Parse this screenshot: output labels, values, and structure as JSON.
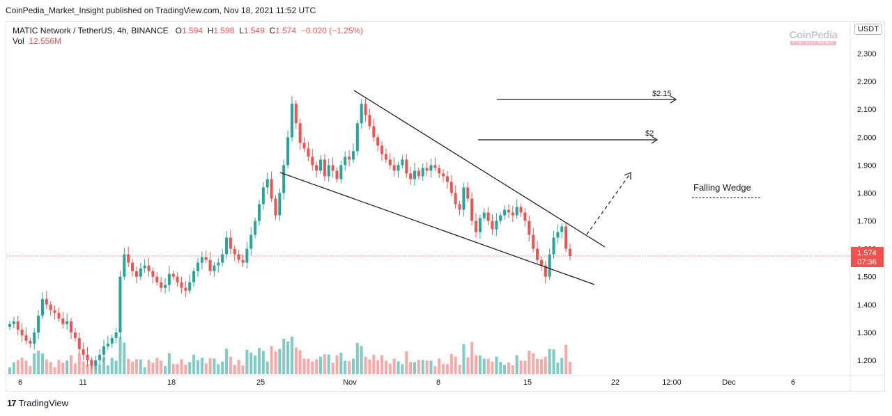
{
  "header": {
    "published": "CoinPedia_Market_Insight published on TradingView.com, Nov 18, 2021 11:52 UTC"
  },
  "legend": {
    "symbol": "MATIC Network / TetherUS, 4h, BINANCE",
    "o_label": "O",
    "o": "1.594",
    "h_label": "H",
    "h": "1.598",
    "l_label": "L",
    "l": "1.549",
    "c_label": "C",
    "c": "1.574",
    "change": "−0.020 (−1.25%)",
    "vol_label": "Vol",
    "vol": "12.556M"
  },
  "watermark": {
    "line1": "CoinPedia",
    "line2": "FINTECH NEWS"
  },
  "currency_button": "USDT",
  "price_badge": {
    "price": "1.574",
    "countdown": "07:36"
  },
  "footer": {
    "brand": "TradingView"
  },
  "colors": {
    "up": "#26a69a",
    "down": "#ef5350",
    "up_vol": "#80cbc4",
    "down_vol": "#f7a9a7",
    "price_line": "#ef5350"
  },
  "chart_data": {
    "type": "candlestick",
    "y_ticks": [
      "2.300",
      "2.200",
      "2.100",
      "2.000",
      "1.900",
      "1.800",
      "1.700",
      "1.600",
      "1.500",
      "1.400",
      "1.300",
      "1.200"
    ],
    "ylim": [
      1.14,
      2.38
    ],
    "x_ticks": [
      "6",
      "11",
      "18",
      "25",
      "Nov",
      "8",
      "15",
      "22",
      "12:00",
      "Dec",
      "6"
    ],
    "annotations": [
      {
        "label": "$2.15",
        "y": 2.145
      },
      {
        "label": "$2",
        "y": 1.995
      },
      {
        "label": "Falling Wedge"
      }
    ],
    "closes": [
      1.33,
      1.34,
      1.31,
      1.29,
      1.27,
      1.26,
      1.3,
      1.36,
      1.42,
      1.4,
      1.38,
      1.37,
      1.35,
      1.33,
      1.34,
      1.3,
      1.28,
      1.24,
      1.22,
      1.2,
      1.18,
      1.2,
      1.22,
      1.25,
      1.26,
      1.28,
      1.3,
      1.5,
      1.58,
      1.55,
      1.52,
      1.5,
      1.53,
      1.54,
      1.52,
      1.5,
      1.48,
      1.46,
      1.47,
      1.51,
      1.5,
      1.48,
      1.46,
      1.45,
      1.48,
      1.52,
      1.55,
      1.57,
      1.56,
      1.52,
      1.54,
      1.55,
      1.58,
      1.64,
      1.6,
      1.58,
      1.56,
      1.55,
      1.6,
      1.65,
      1.7,
      1.76,
      1.82,
      1.85,
      1.78,
      1.72,
      1.8,
      1.9,
      2.0,
      2.12,
      2.05,
      1.98,
      1.96,
      1.93,
      1.9,
      1.88,
      1.92,
      1.86,
      1.9,
      1.88,
      1.85,
      1.9,
      1.93,
      1.92,
      1.95,
      2.05,
      2.12,
      2.08,
      2.04,
      2.0,
      1.97,
      1.94,
      1.92,
      1.9,
      1.88,
      1.9,
      1.92,
      1.87,
      1.85,
      1.88,
      1.86,
      1.89,
      1.88,
      1.9,
      1.89,
      1.87,
      1.86,
      1.84,
      1.8,
      1.76,
      1.74,
      1.82,
      1.78,
      1.7,
      1.66,
      1.71,
      1.73,
      1.7,
      1.67,
      1.7,
      1.72,
      1.74,
      1.73,
      1.72,
      1.75,
      1.73,
      1.7,
      1.65,
      1.6,
      1.56,
      1.54,
      1.5,
      1.58,
      1.64,
      1.66,
      1.68,
      1.6,
      1.574
    ],
    "notes": [
      {
        "label": "Resistance line",
        "from": [
          0.0,
          2.18
        ],
        "to": [
          1.0,
          1.61
        ]
      },
      {
        "label": "Support line",
        "from": [
          0.0,
          1.87
        ],
        "to": [
          1.0,
          1.46
        ]
      }
    ]
  }
}
